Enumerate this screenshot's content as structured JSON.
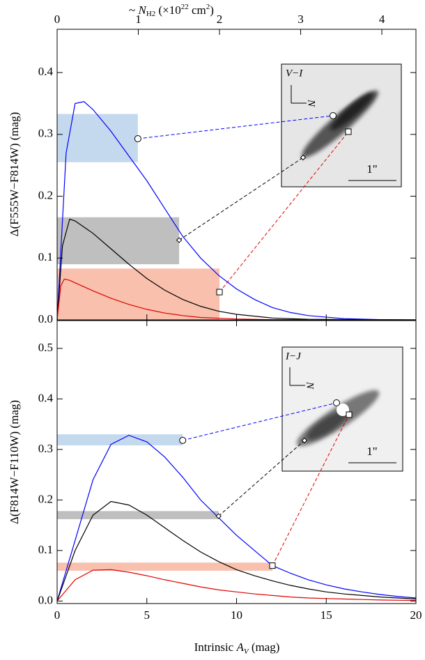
{
  "chart_data": [
    {
      "type": "line",
      "x2label": [
        "~ ",
        "N",
        "H",
        "2",
        " (×10",
        "22",
        " cm",
        "2",
        ")"
      ],
      "x2lim": [
        0,
        4.42
      ],
      "x2ticks": [
        0,
        1,
        2,
        3,
        4
      ],
      "ylabel": "Δ(F555W−F814W) (mag)",
      "xlim": [
        0,
        20
      ],
      "xticks": [
        0,
        5,
        10,
        15,
        20
      ],
      "xtick_labels": false,
      "ylim": [
        0,
        0.47
      ],
      "yticks": [
        {
          "value": 0,
          "label": "0.0"
        },
        0.1,
        0.2,
        0.3,
        0.4
      ],
      "series": [
        {
          "color": "#0000ff",
          "x": [
            0,
            0.5,
            1,
            1.5,
            2,
            3,
            4,
            5,
            6,
            7,
            8,
            9,
            10,
            11,
            12,
            13,
            14,
            16,
            18,
            20
          ],
          "values": [
            0,
            0.27,
            0.35,
            0.353,
            0.34,
            0.305,
            0.265,
            0.225,
            0.18,
            0.135,
            0.1,
            0.072,
            0.05,
            0.033,
            0.02,
            0.012,
            0.007,
            0.002,
            0.0005,
            0
          ]
        },
        {
          "color": "#000000",
          "x": [
            0,
            0.3,
            0.7,
            1,
            2,
            3,
            4,
            5,
            6,
            7,
            8,
            9,
            10,
            12,
            14,
            20
          ],
          "values": [
            0,
            0.12,
            0.163,
            0.16,
            0.14,
            0.115,
            0.09,
            0.067,
            0.048,
            0.033,
            0.022,
            0.014,
            0.009,
            0.003,
            0.001,
            0
          ]
        },
        {
          "color": "#e00000",
          "x": [
            0,
            0.2,
            0.4,
            0.7,
            1,
            2,
            3,
            4,
            5,
            6,
            7,
            8,
            10,
            12,
            20
          ],
          "values": [
            0,
            0.055,
            0.066,
            0.064,
            0.06,
            0.047,
            0.035,
            0.025,
            0.017,
            0.011,
            0.007,
            0.004,
            0.0015,
            0.0005,
            0
          ]
        }
      ],
      "bands": [
        {
          "color": "#c5d9ee",
          "line": "#0000ff",
          "marker": "circle",
          "xmax": 4.5,
          "ylow": 0.255,
          "yhigh": 0.333,
          "marker_y": 0.293
        },
        {
          "color": "#bfbfbf",
          "line": "#000000",
          "marker": "diamond",
          "xmax": 6.8,
          "ylow": 0.09,
          "yhigh": 0.166,
          "marker_y": 0.129
        },
        {
          "color": "#f8c0ad",
          "line": "#e00000",
          "marker": "square",
          "xmax": 9.05,
          "ylow": 0,
          "yhigh": 0.083,
          "marker_y": 0.045
        }
      ],
      "inset": {
        "label": "V−I",
        "north": "N",
        "scale": "1\""
      }
    },
    {
      "type": "line",
      "xlabel": [
        "Intrinsic ",
        "A",
        "V",
        " (mag)"
      ],
      "ylabel": "Δ(F814W−F110W) (mag)",
      "xlim": [
        0,
        20
      ],
      "xticks": [
        0,
        5,
        10,
        15,
        20
      ],
      "xtick_labels": true,
      "ylim": [
        -0.005,
        0.555
      ],
      "yticks": [
        {
          "value": 0,
          "label": "0.0"
        },
        0.1,
        0.2,
        0.3,
        0.4,
        0.5
      ],
      "series": [
        {
          "color": "#0000ff",
          "x": [
            0,
            1,
            2,
            3,
            4,
            5,
            6,
            7,
            8,
            9,
            10,
            11,
            12,
            13,
            14,
            15,
            16,
            17,
            18,
            19,
            20
          ],
          "values": [
            0,
            0.12,
            0.24,
            0.31,
            0.328,
            0.315,
            0.285,
            0.245,
            0.2,
            0.165,
            0.13,
            0.1,
            0.07,
            0.055,
            0.042,
            0.032,
            0.024,
            0.018,
            0.013,
            0.009,
            0.006
          ]
        },
        {
          "color": "#000000",
          "x": [
            0,
            1,
            2,
            3,
            4,
            5,
            6,
            7,
            8,
            9,
            10,
            11,
            12,
            13,
            14,
            15,
            16,
            17,
            18,
            19,
            20
          ],
          "values": [
            0,
            0.1,
            0.17,
            0.197,
            0.19,
            0.17,
            0.145,
            0.12,
            0.097,
            0.078,
            0.062,
            0.05,
            0.04,
            0.031,
            0.024,
            0.018,
            0.014,
            0.011,
            0.008,
            0.006,
            0.004
          ]
        },
        {
          "color": "#e00000",
          "x": [
            0,
            1,
            2,
            3,
            4,
            5,
            6,
            7,
            8,
            9,
            10,
            11,
            12,
            13,
            14,
            15,
            16,
            17,
            18,
            19,
            20
          ],
          "values": [
            0,
            0.042,
            0.061,
            0.062,
            0.057,
            0.05,
            0.042,
            0.035,
            0.028,
            0.022,
            0.018,
            0.014,
            0.011,
            0.008,
            0.006,
            0.005,
            0.004,
            0.003,
            0.002,
            0.0015,
            0.001
          ]
        }
      ],
      "bands": [
        {
          "color": "#c5d9ee",
          "line": "#0000ff",
          "marker": "circle",
          "xmax": 7,
          "ylow": 0.308,
          "yhigh": 0.33,
          "marker_y": 0.318
        },
        {
          "color": "#bfbfbf",
          "line": "#000000",
          "marker": "diamond",
          "xmax": 9,
          "ylow": 0.162,
          "yhigh": 0.178,
          "marker_y": 0.168
        },
        {
          "color": "#f8c0ad",
          "line": "#e00000",
          "marker": "square",
          "xmax": 12,
          "ylow": 0.06,
          "yhigh": 0.076,
          "marker_y": 0.07
        }
      ],
      "inset": {
        "label": "I−J",
        "north": "N",
        "scale": "1\""
      }
    }
  ]
}
